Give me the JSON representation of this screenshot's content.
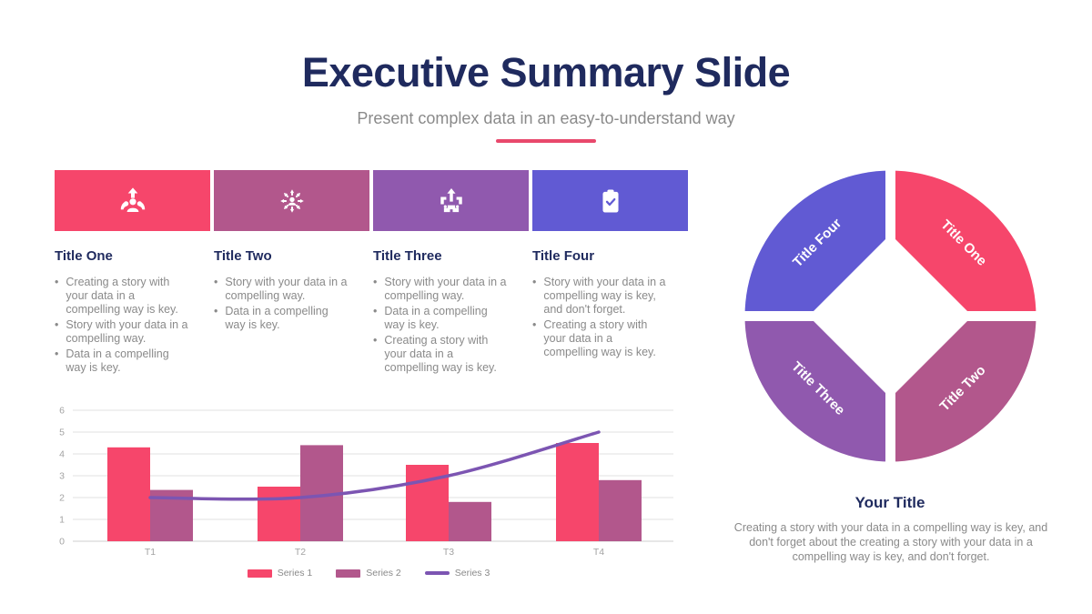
{
  "slide": {
    "title": "Executive Summary Slide",
    "subtitle": "Present complex data in an easy-to-understand way"
  },
  "colors": {
    "accent_pink": "#F6466B",
    "mauve": "#B2578C",
    "purple": "#9059AE",
    "blue_purple": "#615AD3",
    "line_purple": "#7C55B2",
    "navy": "#1F2A5E",
    "body_gray": "#8A8A8A",
    "axis_gray": "#A3A3A3",
    "grid_gray": "#E2E2E2",
    "divider_pink": "#E8486C"
  },
  "columns": [
    {
      "title": "Title One",
      "icon": "person-growth-icon",
      "color": "#F6466B",
      "bullets": [
        "Creating a story with your data in a compelling way is key.",
        "Story with your data in a compelling way.",
        "Data in a compelling way is key."
      ]
    },
    {
      "title": "Title Two",
      "icon": "person-expand-icon",
      "color": "#B2578C",
      "bullets": [
        "Story with your data in a compelling way.",
        "Data in a compelling way is key."
      ]
    },
    {
      "title": "Title Three",
      "icon": "merge-arrows-icon",
      "color": "#9059AE",
      "bullets": [
        "Story with your data in a compelling way.",
        "Data in a compelling way is key.",
        "Creating a story with your data in a compelling way is key."
      ]
    },
    {
      "title": "Title Four",
      "icon": "clipboard-check-icon",
      "color": "#615AD3",
      "bullets": [
        "Story with your data in a compelling way is key, and don't forget.",
        "Creating a story with your data in a compelling way is key."
      ]
    }
  ],
  "chart_data": {
    "type": "bar",
    "categories": [
      "T1",
      "T2",
      "T3",
      "T4"
    ],
    "series": [
      {
        "name": "Series 1",
        "type": "bar",
        "color": "#F6466B",
        "values": [
          4.3,
          2.5,
          3.5,
          4.5
        ]
      },
      {
        "name": "Series 2",
        "type": "bar",
        "color": "#B2578C",
        "values": [
          2.35,
          4.4,
          1.8,
          2.8
        ]
      },
      {
        "name": "Series 3",
        "type": "line",
        "color": "#7C55B2",
        "values": [
          2,
          2,
          3,
          5
        ]
      }
    ],
    "title": "",
    "xlabel": "",
    "ylabel": "",
    "ylim": [
      0,
      6
    ],
    "yticks": [
      0,
      1,
      2,
      3,
      4,
      5,
      6
    ],
    "grid": true,
    "legend_position": "bottom"
  },
  "diagram": {
    "segments": [
      {
        "label": "Title One",
        "color": "#F6466B",
        "position": "top-right"
      },
      {
        "label": "Title Two",
        "color": "#B2578C",
        "position": "bottom-right"
      },
      {
        "label": "Title Three",
        "color": "#9059AE",
        "position": "bottom-left"
      },
      {
        "label": "Title Four",
        "color": "#615AD3",
        "position": "top-left"
      }
    ],
    "title": "Your Title",
    "description": "Creating a story with your data in a compelling way is key, and don't forget about the creating a story with your data in a compelling way is key, and don't forget."
  }
}
